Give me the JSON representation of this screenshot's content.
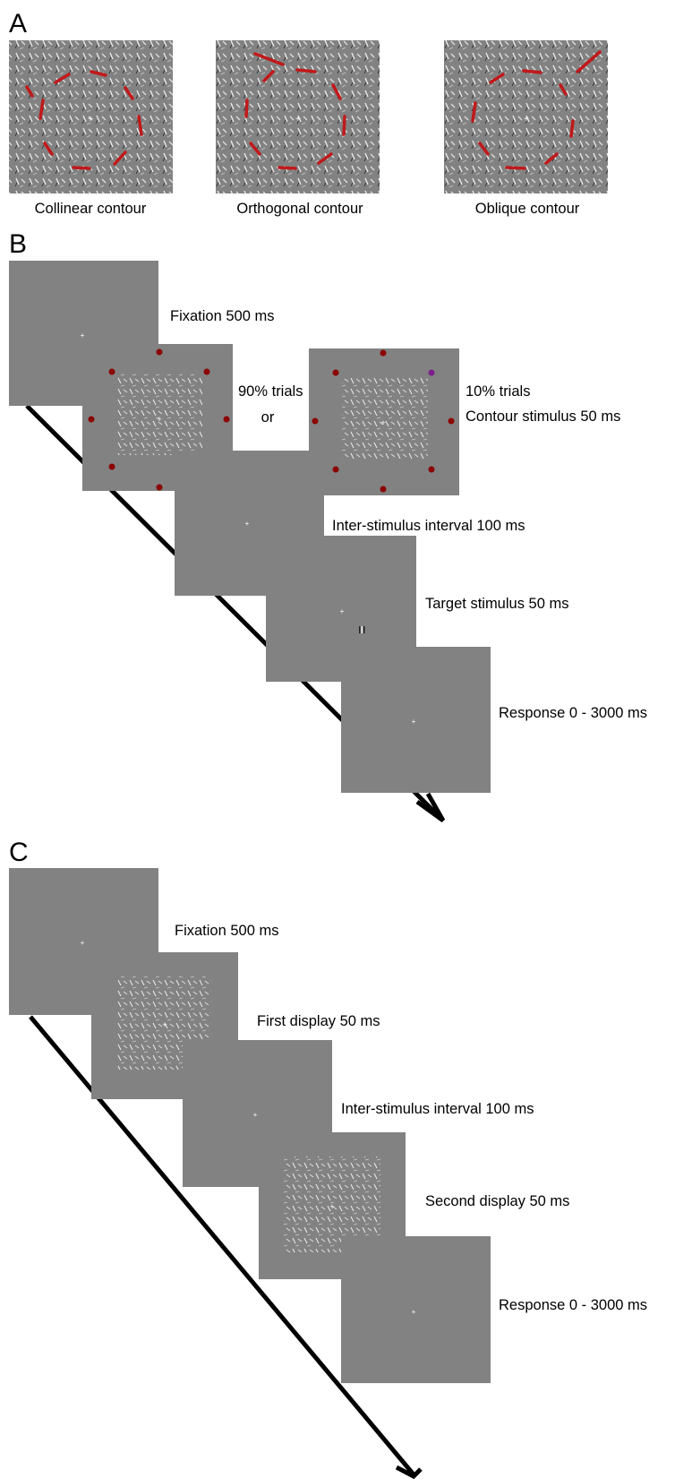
{
  "panel_a": {
    "letter": "A",
    "captions": [
      "Collinear contour",
      "Orthogonal contour",
      "Oblique contour"
    ]
  },
  "panel_b": {
    "letter": "B",
    "fixation": "Fixation 500 ms",
    "pct_90": "90% trials",
    "or": "or",
    "pct_10": "10% trials",
    "contour": "Contour stimulus 50 ms",
    "isi": "Inter-stimulus interval 100 ms",
    "target": "Target stimulus 50 ms",
    "response": "Response 0 - 3000 ms"
  },
  "panel_c": {
    "letter": "C",
    "fixation": "Fixation 500 ms",
    "first": "First display 50 ms",
    "isi": "Inter-stimulus interval  100 ms",
    "second": "Second display 50 ms",
    "response": "Response 0 - 3000 ms"
  },
  "colors": {
    "screen": "#828282",
    "contour_marker": "#c0191b",
    "dot": "#8b0000",
    "dot_odd": "#7a1f8a",
    "arrow": "#000000"
  }
}
